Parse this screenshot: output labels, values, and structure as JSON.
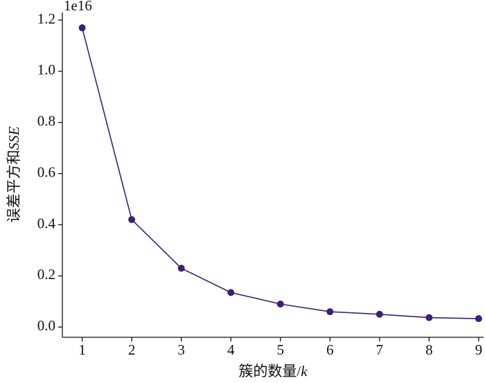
{
  "chart_data": {
    "type": "line",
    "offset_label": "1e16",
    "xlabel": [
      "簇的数量/",
      "k"
    ],
    "ylabel": [
      "误差平方和",
      "SSE"
    ],
    "x": [
      1,
      2,
      3,
      4,
      5,
      6,
      7,
      8,
      9
    ],
    "series": [
      {
        "color": "#3b1f78",
        "values": [
          1.17,
          0.42,
          0.23,
          0.135,
          0.09,
          0.06,
          0.05,
          0.037,
          0.033
        ]
      }
    ],
    "xlim": [
      0.6,
      9.1
    ],
    "ylim": [
      -0.04,
      1.23
    ],
    "xticks": [
      1,
      2,
      3,
      4,
      5,
      6,
      7,
      8,
      9
    ],
    "yticks": [
      {
        "value": 0,
        "label": "0.0"
      },
      0.2,
      0.4,
      0.6,
      0.8,
      {
        "value": 1,
        "label": "1.0"
      },
      1.2
    ]
  }
}
